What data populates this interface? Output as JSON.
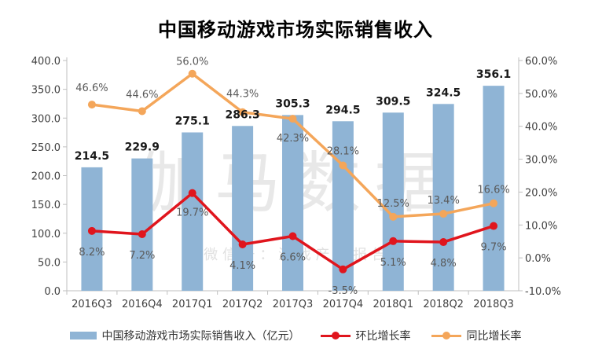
{
  "chart_data": {
    "type": "bar",
    "title": "中国移动游戏市场实际销售收入",
    "categories": [
      "2016Q3",
      "2016Q4",
      "2017Q1",
      "2017Q2",
      "2017Q3",
      "2017Q4",
      "2018Q1",
      "2018Q2",
      "2018Q3"
    ],
    "series": [
      {
        "name": "中国移动游戏市场实际销售收入（亿元）",
        "kind": "bar",
        "axis": "left",
        "color": "#8FB4D5",
        "values": [
          214.5,
          229.9,
          275.1,
          286.3,
          305.3,
          294.5,
          309.5,
          324.5,
          356.1
        ],
        "labels": [
          "214.5",
          "229.9",
          "275.1",
          "286.3",
          "305.3",
          "294.5",
          "309.5",
          "324.5",
          "356.1"
        ]
      },
      {
        "name": "环比增长率",
        "kind": "line",
        "axis": "right",
        "color": "#E0151D",
        "values": [
          8.2,
          7.2,
          19.7,
          4.1,
          6.6,
          -3.5,
          5.1,
          4.8,
          9.7
        ],
        "labels": [
          "8.2%",
          "7.2%",
          "19.7%",
          "4.1%",
          "6.6%",
          "-3.5%",
          "5.1%",
          "4.8%",
          "9.7%"
        ]
      },
      {
        "name": "同比增长率",
        "kind": "line",
        "axis": "right",
        "color": "#F4A65A",
        "values": [
          46.6,
          44.6,
          56.0,
          44.3,
          42.3,
          28.1,
          12.5,
          13.4,
          16.6
        ],
        "labels": [
          "46.6%",
          "44.6%",
          "56.0%",
          "44.3%",
          "42.3%",
          "28.1%",
          "12.5%",
          "13.4%",
          "16.6%"
        ]
      }
    ],
    "y_left": {
      "range": [
        0,
        400
      ],
      "ticks": [
        0,
        50,
        100,
        150,
        200,
        250,
        300,
        350,
        400
      ],
      "tick_labels": [
        "0.0",
        "50.0",
        "100.0",
        "150.0",
        "200.0",
        "250.0",
        "300.0",
        "350.0",
        "400.0"
      ]
    },
    "y_right": {
      "range": [
        -10,
        60
      ],
      "ticks": [
        -10,
        0,
        10,
        20,
        30,
        40,
        50,
        60
      ],
      "tick_labels": [
        "-10.0%",
        "0.0%",
        "10.0%",
        "20.0%",
        "30.0%",
        "40.0%",
        "50.0%",
        "60.0%"
      ]
    },
    "grid": false,
    "legend_position": "bottom",
    "watermark": {
      "main": "伽马数据",
      "sub": "微 信 号 ： 游 戏 产 业 报 告"
    }
  }
}
